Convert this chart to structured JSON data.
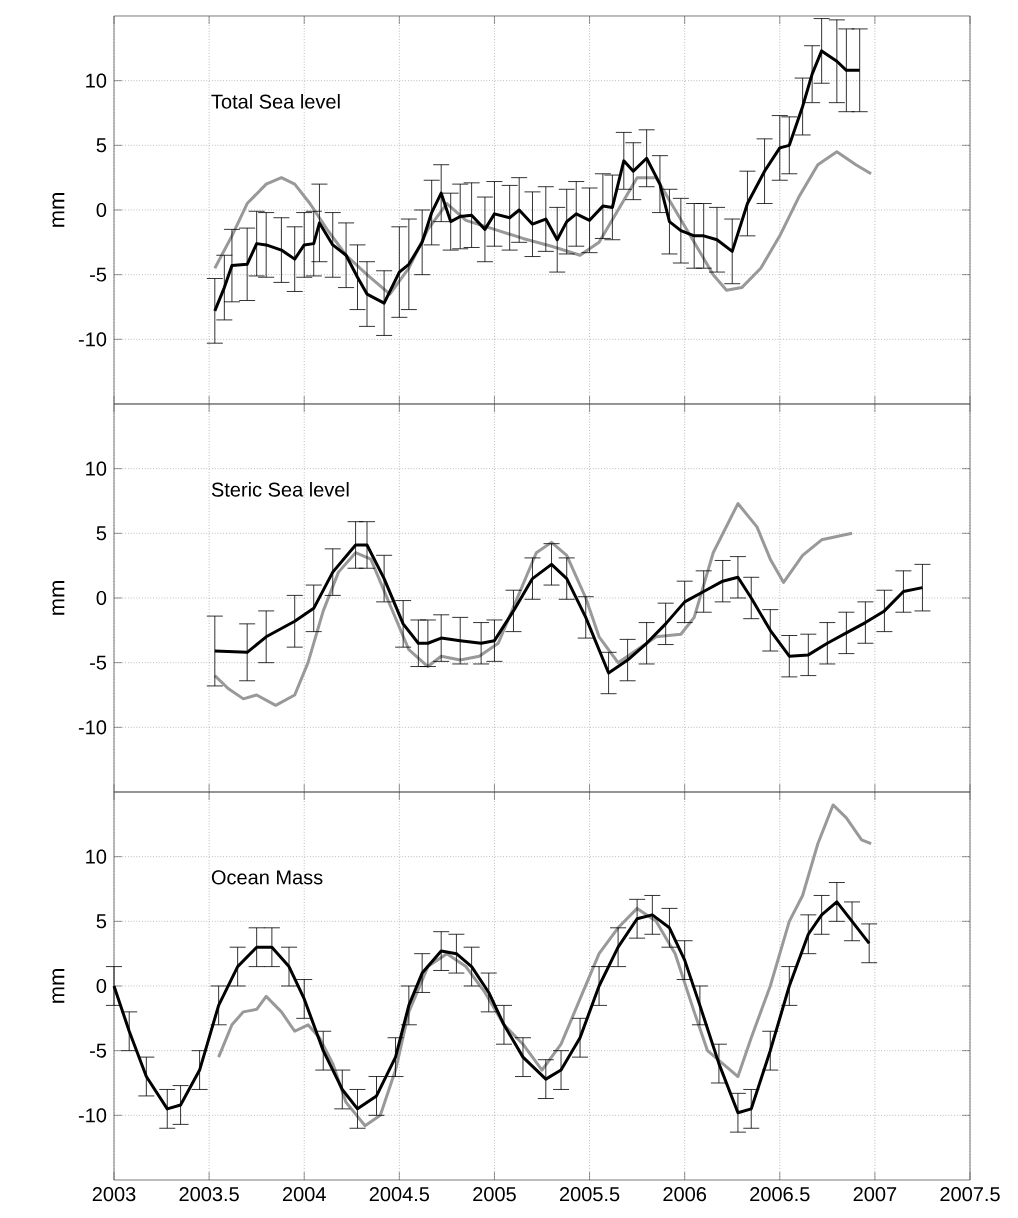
{
  "chart_data": [
    {
      "type": "line",
      "ylabel": "mm",
      "annotations": [
        "Total Sea level"
      ],
      "xlim": [
        2003,
        2007.5
      ],
      "xticks": [
        2003,
        2003.5,
        2004,
        2004.5,
        2005,
        2005.5,
        2006,
        2006.5,
        2007,
        2007.5
      ],
      "ylim": [
        -15,
        15
      ],
      "yticks": [
        -10,
        -5,
        0,
        5,
        10
      ],
      "grid": true,
      "tick_labels": "y",
      "series": [
        {
          "color": "#999999",
          "x": [
            2003.53,
            2003.62,
            2003.7,
            2003.8,
            2003.88,
            2003.95,
            2004.03,
            2004.12,
            2004.22,
            2004.33,
            2004.45,
            2004.55,
            2004.65,
            2004.75,
            2004.85,
            2005.0,
            2005.15,
            2005.3,
            2005.45,
            2005.55,
            2005.65,
            2005.75,
            2005.85,
            2005.95,
            2006.05,
            2006.15,
            2006.22,
            2006.3,
            2006.4,
            2006.5,
            2006.6,
            2006.7,
            2006.8,
            2006.9,
            2006.98
          ],
          "values": [
            -4.5,
            -2,
            0.5,
            2,
            2.5,
            2,
            0.5,
            -1.5,
            -3.5,
            -5,
            -6.5,
            -4.5,
            -1.5,
            0.5,
            -0.8,
            -1.5,
            -2.2,
            -2.8,
            -3.5,
            -2.5,
            0,
            2.5,
            2.5,
            0,
            -2.5,
            -5,
            -6.2,
            -6,
            -4.5,
            -2,
            1,
            3.5,
            4.5,
            3.5,
            2.8
          ]
        },
        {
          "color": "#000000",
          "x": [
            2003.53,
            2003.58,
            2003.62,
            2003.7,
            2003.75,
            2003.8,
            2003.88,
            2003.95,
            2004.0,
            2004.05,
            2004.08,
            2004.15,
            2004.22,
            2004.28,
            2004.33,
            2004.42,
            2004.5,
            2004.55,
            2004.62,
            2004.67,
            2004.72,
            2004.77,
            2004.82,
            2004.88,
            2004.95,
            2005.0,
            2005.08,
            2005.13,
            2005.2,
            2005.27,
            2005.33,
            2005.38,
            2005.43,
            2005.5,
            2005.57,
            2005.62,
            2005.68,
            2005.73,
            2005.8,
            2005.87,
            2005.92,
            2005.98,
            2006.05,
            2006.1,
            2006.17,
            2006.25,
            2006.33,
            2006.42,
            2006.5,
            2006.55,
            2006.62,
            2006.67,
            2006.72,
            2006.8,
            2006.85,
            2006.92
          ],
          "values": [
            -7.8,
            -6,
            -4.3,
            -4.2,
            -2.6,
            -2.7,
            -3.1,
            -3.8,
            -2.7,
            -2.6,
            -1,
            -2.7,
            -3.5,
            -5.2,
            -6.5,
            -7.2,
            -4.8,
            -4.2,
            -2.5,
            -0.2,
            1.3,
            -0.9,
            -0.5,
            -0.4,
            -1.5,
            -0.3,
            -0.6,
            0,
            -1.1,
            -0.7,
            -2.3,
            -0.9,
            -0.3,
            -0.8,
            0.3,
            0.2,
            3.8,
            3.0,
            4.0,
            2.0,
            -0.9,
            -1.6,
            -2.0,
            -2.0,
            -2.3,
            -3.2,
            0.5,
            3.0,
            4.8,
            5,
            8,
            10.5,
            12.3,
            11.5,
            10.8,
            10.8
          ],
          "errors": [
            2.5,
            2.5,
            2.8,
            2.8,
            2.5,
            2.5,
            2.5,
            2.5,
            2.5,
            2.5,
            3,
            2.5,
            2.5,
            2.5,
            2.5,
            2.5,
            3.5,
            3.5,
            2.5,
            2.5,
            2.2,
            2.2,
            2.5,
            2.5,
            2.5,
            2.5,
            2.5,
            2.5,
            2.5,
            2.5,
            2.5,
            2.5,
            2.5,
            2.5,
            2.5,
            2.5,
            2.2,
            2.2,
            2.2,
            2.2,
            2.5,
            2.5,
            2.5,
            2.5,
            2.5,
            2.5,
            2.5,
            2.5,
            2.5,
            2.2,
            2.2,
            2.2,
            2.5,
            3.2,
            3.2,
            3.2
          ]
        }
      ]
    },
    {
      "type": "line",
      "ylabel": "mm",
      "annotations": [
        "Steric Sea level"
      ],
      "xlim": [
        2003,
        2007.5
      ],
      "xticks": [
        2003,
        2003.5,
        2004,
        2004.5,
        2005,
        2005.5,
        2006,
        2006.5,
        2007,
        2007.5
      ],
      "ylim": [
        -15,
        15
      ],
      "yticks": [
        -10,
        -5,
        0,
        5,
        10
      ],
      "grid": true,
      "tick_labels": "y",
      "series": [
        {
          "color": "#999999",
          "x": [
            2003.53,
            2003.6,
            2003.68,
            2003.75,
            2003.85,
            2003.95,
            2004.02,
            2004.1,
            2004.18,
            2004.27,
            2004.35,
            2004.45,
            2004.55,
            2004.65,
            2004.72,
            2004.82,
            2004.92,
            2005.02,
            2005.12,
            2005.22,
            2005.3,
            2005.38,
            2005.48,
            2005.55,
            2005.65,
            2005.75,
            2005.85,
            2005.98,
            2006.05,
            2006.15,
            2006.28,
            2006.38,
            2006.45,
            2006.52,
            2006.62,
            2006.72,
            2006.88
          ],
          "values": [
            -6,
            -7,
            -7.8,
            -7.5,
            -8.3,
            -7.5,
            -5,
            -1,
            2,
            3.5,
            3,
            -0.5,
            -4,
            -5.3,
            -4.5,
            -4.8,
            -4.5,
            -3.5,
            0,
            3.5,
            4.3,
            3.3,
            0,
            -3,
            -5,
            -4,
            -3,
            -2.8,
            -1.5,
            3.5,
            7.3,
            5.5,
            3,
            1.2,
            3.3,
            4.5,
            5
          ]
        },
        {
          "color": "#000000",
          "x": [
            2003.53,
            2003.7,
            2003.8,
            2003.95,
            2004.05,
            2004.15,
            2004.27,
            2004.33,
            2004.42,
            2004.52,
            2004.6,
            2004.65,
            2004.72,
            2004.82,
            2004.93,
            2005.0,
            2005.1,
            2005.2,
            2005.3,
            2005.38,
            2005.48,
            2005.6,
            2005.7,
            2005.8,
            2005.9,
            2006.0,
            2006.1,
            2006.2,
            2006.28,
            2006.35,
            2006.45,
            2006.55,
            2006.65,
            2006.75,
            2006.85,
            2006.95,
            2007.05,
            2007.15,
            2007.25
          ],
          "values": [
            -4.1,
            -4.2,
            -3,
            -1.8,
            -0.8,
            2,
            4.1,
            4.1,
            1.5,
            -2,
            -3.5,
            -3.5,
            -3.1,
            -3.3,
            -3.5,
            -3.3,
            -1,
            1.5,
            2.6,
            1.5,
            -1.5,
            -5.8,
            -4.8,
            -3.5,
            -2,
            -0.3,
            0.5,
            1.3,
            1.6,
            0,
            -2.5,
            -4.5,
            -4.4,
            -3.5,
            -2.7,
            -1.9,
            -1,
            0.5,
            0.8
          ],
          "errors": [
            2.7,
            2.2,
            2,
            2,
            1.8,
            1.8,
            1.8,
            1.8,
            1.8,
            1.8,
            1.8,
            1.8,
            1.8,
            1.8,
            1.6,
            1.6,
            1.6,
            1.6,
            1.6,
            1.6,
            1.6,
            1.6,
            1.6,
            1.6,
            1.6,
            1.6,
            1.6,
            1.6,
            1.6,
            1.6,
            1.6,
            1.6,
            1.6,
            1.6,
            1.6,
            1.6,
            1.6,
            1.6,
            1.8
          ]
        }
      ]
    },
    {
      "type": "line",
      "ylabel": "mm",
      "annotations": [
        "Ocean Mass"
      ],
      "xlim": [
        2003,
        2007.5
      ],
      "xticks": [
        2003,
        2003.5,
        2004,
        2004.5,
        2005,
        2005.5,
        2006,
        2006.5,
        2007,
        2007.5
      ],
      "ylim": [
        -15,
        15
      ],
      "yticks": [
        -10,
        -5,
        0,
        5,
        10
      ],
      "grid": true,
      "series": [
        {
          "color": "#999999",
          "x": [
            2003.55,
            2003.62,
            2003.68,
            2003.75,
            2003.8,
            2003.88,
            2003.95,
            2004.02,
            2004.08,
            2004.15,
            2004.22,
            2004.32,
            2004.4,
            2004.48,
            2004.55,
            2004.65,
            2004.75,
            2004.85,
            2004.95,
            2005.05,
            2005.15,
            2005.25,
            2005.35,
            2005.45,
            2005.55,
            2005.65,
            2005.75,
            2005.85,
            2005.95,
            2006.05,
            2006.12,
            2006.2,
            2006.28,
            2006.35,
            2006.45,
            2006.55,
            2006.62,
            2006.7,
            2006.78,
            2006.85,
            2006.93,
            2006.98
          ],
          "values": [
            -5.5,
            -3,
            -2,
            -1.8,
            -0.8,
            -2,
            -3.5,
            -3,
            -4,
            -6,
            -9,
            -10.8,
            -10,
            -6.5,
            -2,
            1.5,
            2.5,
            1.5,
            -0.5,
            -3,
            -4.5,
            -6.5,
            -4.5,
            -1,
            2.5,
            4.5,
            6,
            5,
            2.5,
            -2,
            -5,
            -6,
            -7,
            -4,
            0,
            5,
            7,
            11,
            14,
            13,
            11.3,
            11
          ]
        },
        {
          "color": "#000000",
          "x": [
            2003.0,
            2003.08,
            2003.17,
            2003.28,
            2003.35,
            2003.45,
            2003.55,
            2003.65,
            2003.75,
            2003.83,
            2003.92,
            2004.0,
            2004.1,
            2004.2,
            2004.28,
            2004.38,
            2004.48,
            2004.55,
            2004.62,
            2004.72,
            2004.8,
            2004.88,
            2004.97,
            2005.05,
            2005.15,
            2005.27,
            2005.35,
            2005.45,
            2005.55,
            2005.65,
            2005.75,
            2005.83,
            2005.92,
            2006.0,
            2006.08,
            2006.18,
            2006.28,
            2006.35,
            2006.45,
            2006.55,
            2006.65,
            2006.72,
            2006.8,
            2006.88,
            2006.97
          ],
          "values": [
            0,
            -3.5,
            -7,
            -9.5,
            -9.2,
            -6.5,
            -1.5,
            1.5,
            3,
            3,
            1.5,
            -1,
            -5,
            -8,
            -9.5,
            -8.5,
            -5.5,
            -1.5,
            1,
            2.7,
            2.5,
            1.5,
            -0.5,
            -3,
            -5.5,
            -7.2,
            -6.5,
            -4,
            0,
            3,
            5.2,
            5.5,
            4.5,
            2,
            -1.5,
            -6,
            -9.8,
            -9.5,
            -5,
            0,
            4,
            5.5,
            6.5,
            5,
            3.3
          ],
          "errors": [
            1.5,
            1.5,
            1.5,
            1.5,
            1.5,
            1.5,
            1.5,
            1.5,
            1.5,
            1.5,
            1.5,
            1.5,
            1.5,
            1.5,
            1.5,
            1.5,
            1.5,
            1.5,
            1.5,
            1.5,
            1.5,
            1.5,
            1.5,
            1.5,
            1.5,
            1.5,
            1.5,
            1.5,
            1.5,
            1.5,
            1.5,
            1.5,
            1.5,
            1.5,
            1.5,
            1.5,
            1.5,
            1.5,
            1.5,
            1.5,
            1.5,
            1.5,
            1.5,
            1.5,
            1.5
          ]
        }
      ]
    }
  ]
}
